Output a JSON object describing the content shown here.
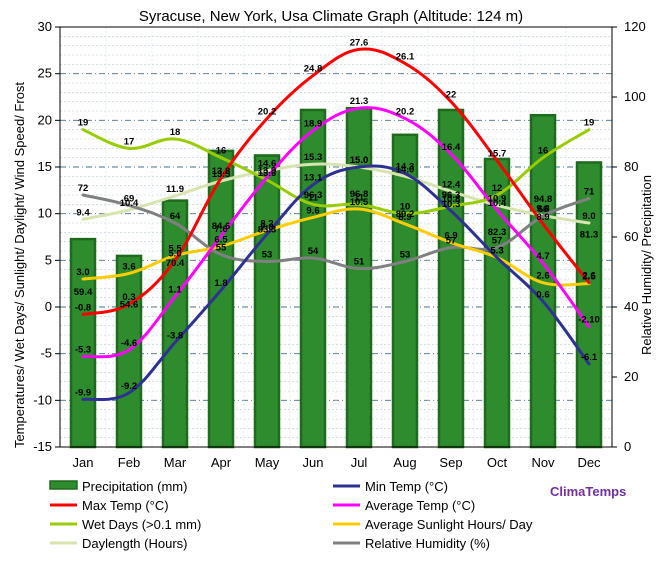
{
  "chart_data": {
    "type": "bar",
    "title": "Syracuse, New York, Usa Climate Graph (Altitude: 124 m)",
    "ylabel_left": "Temperatures/ Wet Days/ Sunlight/ Daylight/ Wind Speed/ Frost",
    "ylabel_right": "Relative Humidity/ Precipitation",
    "categories": [
      "Jan",
      "Feb",
      "Mar",
      "Apr",
      "May",
      "Jun",
      "Jul",
      "Aug",
      "Sep",
      "Oct",
      "Nov",
      "Dec"
    ],
    "ylim_left": [
      -15,
      30
    ],
    "ylim_right": [
      0,
      120
    ],
    "yticks_left": [
      "-15",
      "-10",
      "-5",
      "0",
      "5",
      "10",
      "15",
      "20",
      "25",
      "30"
    ],
    "yticks_right": [
      "0",
      "20",
      "40",
      "60",
      "80",
      "100",
      "120"
    ],
    "grid": true,
    "brand": "ClimaTemps",
    "series": [
      {
        "key": "precip",
        "name": "Precipitation (mm)",
        "axis": "right",
        "kind": "bar",
        "color": "#2e8b2e",
        "values": [
          59.4,
          54.6,
          70.4,
          84.6,
          83.3,
          96.3,
          96.8,
          89.2,
          96.3,
          82.3,
          94.8,
          81.3
        ],
        "labels": [
          "59.4",
          "54.6",
          "70.4",
          "84.6",
          "83.3",
          "96.3",
          "96.8",
          "89.2",
          "96.3",
          "82.3",
          "94.8",
          "81.3"
        ]
      },
      {
        "key": "tmin",
        "name": "Min Temp (°C)",
        "axis": "left",
        "kind": "line",
        "color": "#2e3192",
        "values": [
          -9.9,
          -9.2,
          -3.8,
          1.8,
          7.8,
          13.1,
          15.0,
          14.3,
          10.3,
          5.3,
          0.6,
          -6.1
        ],
        "labels": [
          "-9.9",
          "-9.2",
          "-3.8",
          "1.8",
          "7.8",
          "13.1",
          "15.0",
          "14.3",
          "10.3",
          "5.3",
          "0.6",
          "-6.1"
        ]
      },
      {
        "key": "tmax",
        "name": "Max Temp (°C)",
        "axis": "left",
        "kind": "line",
        "color": "#ff0000",
        "values": [
          -0.8,
          0.3,
          5.0,
          13.8,
          20.2,
          24.8,
          27.6,
          26.1,
          22.0,
          15.7,
          8.9,
          2.6
        ],
        "labels": [
          "-0.8",
          "0.3",
          "5.0",
          "13.8",
          "20.2",
          "24.8",
          "27.6",
          "26.1",
          "22",
          "15.7",
          "8.9",
          "2.6"
        ]
      },
      {
        "key": "tavg",
        "name": "Average Temp (°C)",
        "axis": "left",
        "kind": "line",
        "color": "#ff00ff",
        "values": [
          -5.3,
          -4.6,
          1.1,
          7.6,
          13.9,
          18.9,
          21.3,
          20.2,
          16.4,
          10.4,
          4.7,
          -2.1
        ],
        "labels": [
          "-5.3",
          "-4.6",
          "1.1",
          "7.6",
          "13.9",
          "18.9",
          "21.3",
          "20.2",
          "16.4",
          "10.4",
          "4.7",
          "-2.10"
        ]
      },
      {
        "key": "wetdays",
        "name": "Wet Days (>0.1 mm)",
        "axis": "left",
        "kind": "line",
        "color": "#99cc00",
        "values": [
          19,
          17,
          18,
          16,
          13.6,
          11,
          11,
          10,
          10.8,
          12,
          16,
          19
        ],
        "labels": [
          "19",
          "17",
          "18",
          "16",
          "13.6",
          "11",
          "11",
          "10",
          "10.8",
          "12",
          "16",
          "19"
        ]
      },
      {
        "key": "sunlight",
        "name": "Average Sunlight Hours/ Day",
        "axis": "left",
        "kind": "line",
        "color": "#ffcc00",
        "values": [
          3.0,
          3.6,
          5.5,
          6.5,
          8.2,
          9.6,
          10.5,
          8.9,
          6.9,
          5.3,
          2.6,
          2.5
        ],
        "labels": [
          "3.0",
          "3.6",
          "5.5",
          "6.5",
          "8.2",
          "9.6",
          "10.5",
          "8.9",
          "6.9",
          "5.3",
          "2.6",
          "2.5"
        ]
      },
      {
        "key": "daylength",
        "name": "Daylength (Hours)",
        "axis": "left",
        "kind": "line",
        "color": "#d8e4b0",
        "values": [
          9.4,
          10.4,
          11.9,
          13.5,
          14.6,
          15.3,
          15.0,
          14.0,
          12.4,
          10.9,
          9.8,
          9.0
        ],
        "labels": [
          "9.4",
          "10.4",
          "11.9",
          "13.5",
          "14.6",
          "15.3",
          "15.0",
          "14.0",
          "12.4",
          "10.9",
          "9.8",
          "9.0"
        ]
      },
      {
        "key": "humidity",
        "name": "Relative Humidity (%)",
        "axis": "right",
        "kind": "line",
        "color": "#808080",
        "values": [
          72,
          69,
          64,
          55,
          53,
          54,
          51,
          53,
          57,
          57,
          66,
          71
        ],
        "labels": [
          "72",
          "69",
          "64",
          "55",
          "53",
          "54",
          "51",
          "53",
          "57",
          "57",
          "66",
          "71"
        ]
      }
    ]
  }
}
